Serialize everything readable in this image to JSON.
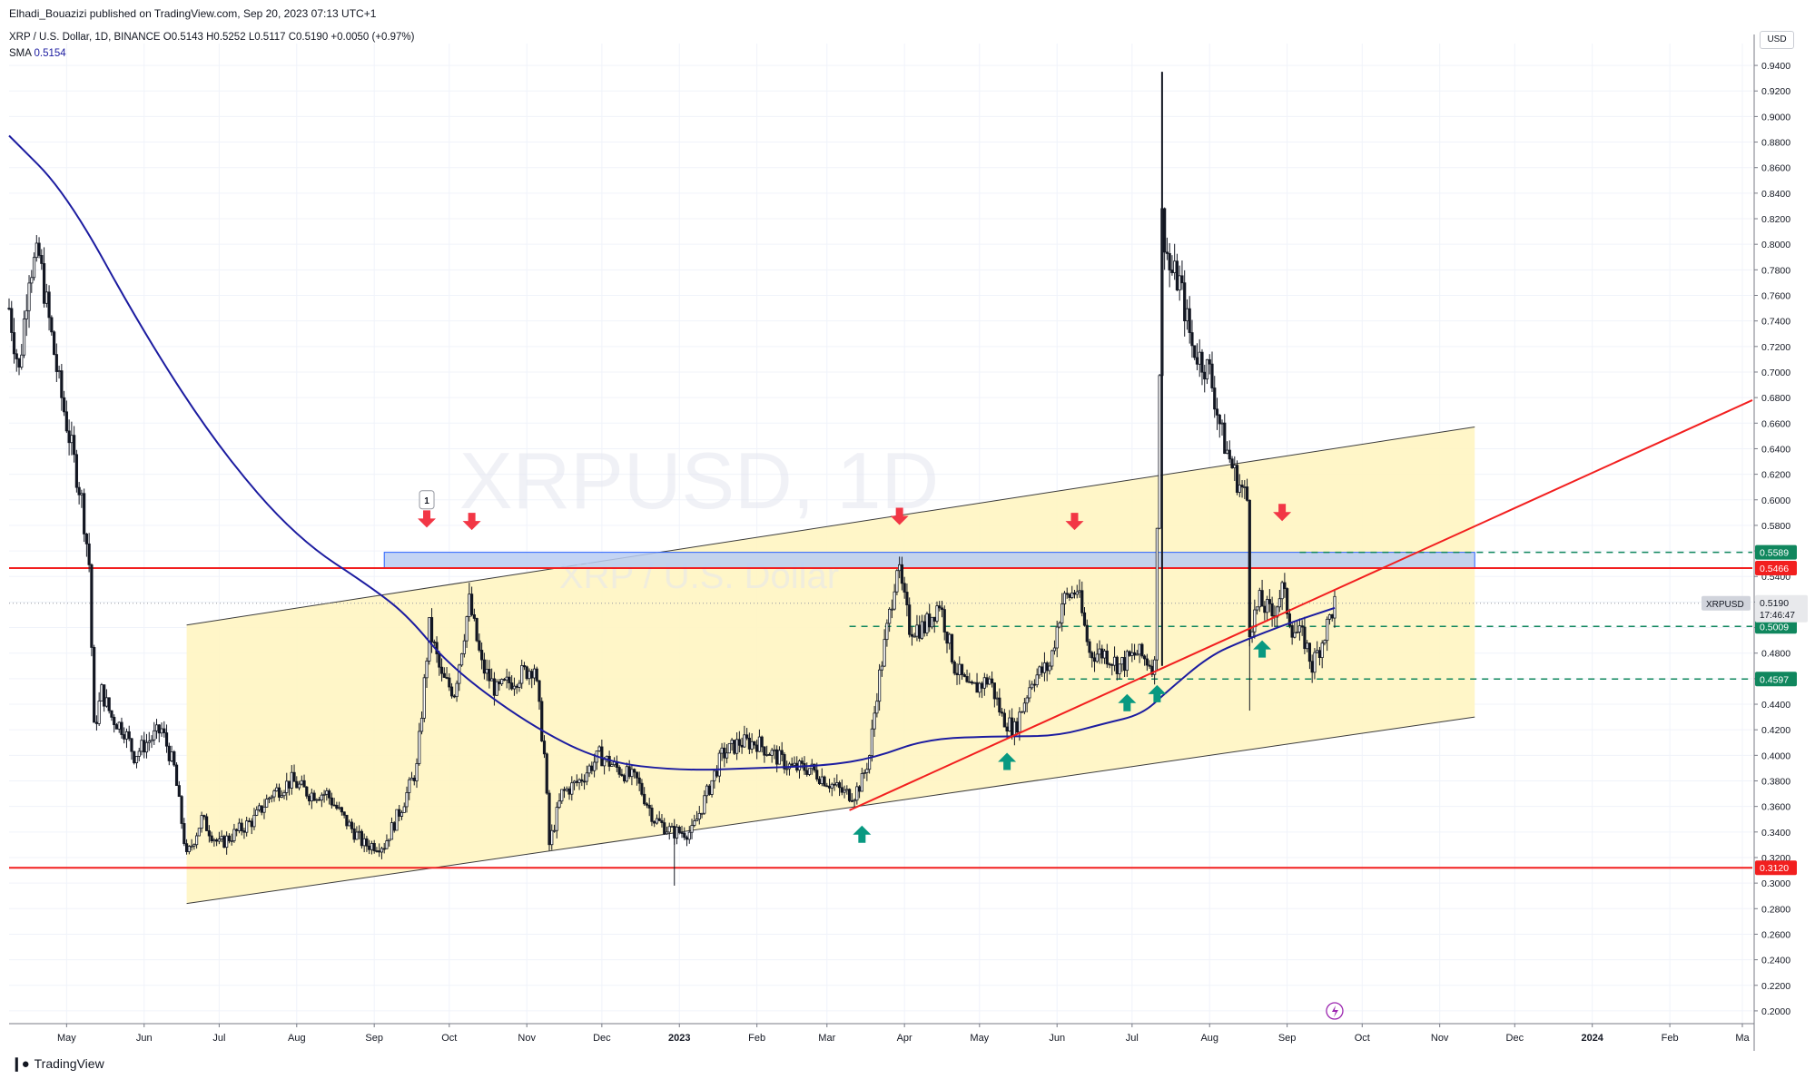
{
  "header": {
    "publisher_text": "Elhadi_Bouazizi published on TradingView.com, Sep 20, 2023 07:13 UTC+1",
    "symbol_title": "XRP / U.S. Dollar, 1D, BINANCE",
    "ohlc": {
      "o": "O0.5143",
      "h": "H0.5252",
      "l": "L0.5117",
      "c": "C0.5190",
      "chg": "+0.0050 (+0.97%)"
    },
    "sma_label": "SMA",
    "sma_value": "0.5154"
  },
  "currency_label": "USD",
  "watermark": {
    "symbol": "XRPUSD, 1D",
    "name": "XRP / U.S. Dollar"
  },
  "footer": {
    "brand": "TradingView"
  },
  "colors": {
    "bull": "#089981",
    "bear": "#f23645",
    "candle": "#131722",
    "sma": "#1c1ca0",
    "channel_fill": "#fff5c2",
    "support_line": "#f21f1f",
    "zone_fill": "#b8ccf2",
    "zone_border": "#2962ff",
    "level_dash": "#10875e"
  },
  "chart_data": {
    "type": "candlestick",
    "symbol": "XRPUSD",
    "timeframe": "1D",
    "y_axis": {
      "range": [
        0.19,
        0.95
      ],
      "ticks": [
        "0.2000",
        "0.2200",
        "0.2400",
        "0.2600",
        "0.2800",
        "0.3000",
        "0.3200",
        "0.3400",
        "0.3600",
        "0.3800",
        "0.4000",
        "0.4200",
        "0.4400",
        "0.4600",
        "0.4800",
        "0.5000",
        "0.5200",
        "0.5400",
        "0.5600",
        "0.5800",
        "0.6000",
        "0.6200",
        "0.6400",
        "0.6600",
        "0.6800",
        "0.7000",
        "0.7200",
        "0.7400",
        "0.7600",
        "0.7800",
        "0.8000",
        "0.8200",
        "0.8400",
        "0.8600",
        "0.8800",
        "0.9000",
        "0.9200",
        "0.9400"
      ]
    },
    "x_axis": {
      "start": "2022-04-08",
      "end": "2024-03-05",
      "ticks": [
        {
          "label": "May",
          "date": "2022-05-01"
        },
        {
          "label": "Jun",
          "date": "2022-06-01"
        },
        {
          "label": "Jul",
          "date": "2022-07-01"
        },
        {
          "label": "Aug",
          "date": "2022-08-01"
        },
        {
          "label": "Sep",
          "date": "2022-09-01"
        },
        {
          "label": "Oct",
          "date": "2022-10-01"
        },
        {
          "label": "Nov",
          "date": "2022-11-01"
        },
        {
          "label": "Dec",
          "date": "2022-12-01"
        },
        {
          "label": "2023",
          "date": "2023-01-01",
          "bold": true
        },
        {
          "label": "Feb",
          "date": "2023-02-01"
        },
        {
          "label": "Mar",
          "date": "2023-03-01"
        },
        {
          "label": "Apr",
          "date": "2023-04-01"
        },
        {
          "label": "May",
          "date": "2023-05-01"
        },
        {
          "label": "Jun",
          "date": "2023-06-01"
        },
        {
          "label": "Jul",
          "date": "2023-07-01"
        },
        {
          "label": "Aug",
          "date": "2023-08-01"
        },
        {
          "label": "Sep",
          "date": "2023-09-01"
        },
        {
          "label": "Oct",
          "date": "2023-10-01"
        },
        {
          "label": "Nov",
          "date": "2023-11-01"
        },
        {
          "label": "Dec",
          "date": "2023-12-01"
        },
        {
          "label": "2024",
          "date": "2024-01-01",
          "bold": true
        },
        {
          "label": "Feb",
          "date": "2024-02-01"
        },
        {
          "label": "Ma",
          "date": "2024-03-01"
        }
      ]
    },
    "price_series": [
      {
        "d": "2022-04-08",
        "p": 0.75
      },
      {
        "d": "2022-04-12",
        "p": 0.7
      },
      {
        "d": "2022-04-16",
        "p": 0.78
      },
      {
        "d": "2022-04-20",
        "p": 0.79
      },
      {
        "d": "2022-04-24",
        "p": 0.74
      },
      {
        "d": "2022-04-28",
        "p": 0.69
      },
      {
        "d": "2022-05-03",
        "p": 0.64
      },
      {
        "d": "2022-05-07",
        "p": 0.6
      },
      {
        "d": "2022-05-10",
        "p": 0.55
      },
      {
        "d": "2022-05-12",
        "p": 0.42
      },
      {
        "d": "2022-05-15",
        "p": 0.45
      },
      {
        "d": "2022-05-19",
        "p": 0.43
      },
      {
        "d": "2022-05-24",
        "p": 0.42
      },
      {
        "d": "2022-05-28",
        "p": 0.4
      },
      {
        "d": "2022-06-02",
        "p": 0.41
      },
      {
        "d": "2022-06-08",
        "p": 0.42
      },
      {
        "d": "2022-06-13",
        "p": 0.39
      },
      {
        "d": "2022-06-18",
        "p": 0.32
      },
      {
        "d": "2022-06-24",
        "p": 0.35
      },
      {
        "d": "2022-07-01",
        "p": 0.33
      },
      {
        "d": "2022-07-08",
        "p": 0.34
      },
      {
        "d": "2022-07-15",
        "p": 0.35
      },
      {
        "d": "2022-07-22",
        "p": 0.37
      },
      {
        "d": "2022-07-30",
        "p": 0.38
      },
      {
        "d": "2022-08-06",
        "p": 0.37
      },
      {
        "d": "2022-08-13",
        "p": 0.37
      },
      {
        "d": "2022-08-20",
        "p": 0.35
      },
      {
        "d": "2022-08-28",
        "p": 0.33
      },
      {
        "d": "2022-09-05",
        "p": 0.33
      },
      {
        "d": "2022-09-12",
        "p": 0.36
      },
      {
        "d": "2022-09-18",
        "p": 0.39
      },
      {
        "d": "2022-09-23",
        "p": 0.5
      },
      {
        "d": "2022-09-28",
        "p": 0.46
      },
      {
        "d": "2022-10-03",
        "p": 0.45
      },
      {
        "d": "2022-10-09",
        "p": 0.52
      },
      {
        "d": "2022-10-14",
        "p": 0.47
      },
      {
        "d": "2022-10-20",
        "p": 0.45
      },
      {
        "d": "2022-10-27",
        "p": 0.46
      },
      {
        "d": "2022-11-04",
        "p": 0.47
      },
      {
        "d": "2022-11-08",
        "p": 0.4
      },
      {
        "d": "2022-11-10",
        "p": 0.33
      },
      {
        "d": "2022-11-15",
        "p": 0.37
      },
      {
        "d": "2022-11-22",
        "p": 0.38
      },
      {
        "d": "2022-11-30",
        "p": 0.4
      },
      {
        "d": "2022-12-07",
        "p": 0.39
      },
      {
        "d": "2022-12-15",
        "p": 0.38
      },
      {
        "d": "2022-12-22",
        "p": 0.35
      },
      {
        "d": "2022-12-29",
        "p": 0.34
      },
      {
        "d": "2023-01-06",
        "p": 0.34
      },
      {
        "d": "2023-01-12",
        "p": 0.37
      },
      {
        "d": "2023-01-18",
        "p": 0.4
      },
      {
        "d": "2023-01-25",
        "p": 0.41
      },
      {
        "d": "2023-02-01",
        "p": 0.41
      },
      {
        "d": "2023-02-08",
        "p": 0.4
      },
      {
        "d": "2023-02-15",
        "p": 0.39
      },
      {
        "d": "2023-02-22",
        "p": 0.39
      },
      {
        "d": "2023-03-01",
        "p": 0.38
      },
      {
        "d": "2023-03-08",
        "p": 0.37
      },
      {
        "d": "2023-03-12",
        "p": 0.37
      },
      {
        "d": "2023-03-15",
        "p": 0.38
      },
      {
        "d": "2023-03-18",
        "p": 0.4
      },
      {
        "d": "2023-03-21",
        "p": 0.45
      },
      {
        "d": "2023-03-26",
        "p": 0.51
      },
      {
        "d": "2023-03-29",
        "p": 0.55
      },
      {
        "d": "2023-04-03",
        "p": 0.5
      },
      {
        "d": "2023-04-09",
        "p": 0.5
      },
      {
        "d": "2023-04-15",
        "p": 0.52
      },
      {
        "d": "2023-04-21",
        "p": 0.47
      },
      {
        "d": "2023-04-27",
        "p": 0.45
      },
      {
        "d": "2023-05-05",
        "p": 0.46
      },
      {
        "d": "2023-05-10",
        "p": 0.43
      },
      {
        "d": "2023-05-15",
        "p": 0.42
      },
      {
        "d": "2023-05-22",
        "p": 0.46
      },
      {
        "d": "2023-05-29",
        "p": 0.47
      },
      {
        "d": "2023-06-03",
        "p": 0.52
      },
      {
        "d": "2023-06-09",
        "p": 0.53
      },
      {
        "d": "2023-06-14",
        "p": 0.48
      },
      {
        "d": "2023-06-20",
        "p": 0.48
      },
      {
        "d": "2023-06-26",
        "p": 0.47
      },
      {
        "d": "2023-07-03",
        "p": 0.48
      },
      {
        "d": "2023-07-10",
        "p": 0.47
      },
      {
        "d": "2023-07-13",
        "p": 0.82
      },
      {
        "d": "2023-07-16",
        "p": 0.78
      },
      {
        "d": "2023-07-20",
        "p": 0.77
      },
      {
        "d": "2023-07-25",
        "p": 0.72
      },
      {
        "d": "2023-08-01",
        "p": 0.7
      },
      {
        "d": "2023-08-06",
        "p": 0.65
      },
      {
        "d": "2023-08-11",
        "p": 0.62
      },
      {
        "d": "2023-08-16",
        "p": 0.6
      },
      {
        "d": "2023-08-17",
        "p": 0.5
      },
      {
        "d": "2023-08-21",
        "p": 0.52
      },
      {
        "d": "2023-08-26",
        "p": 0.51
      },
      {
        "d": "2023-08-30",
        "p": 0.53
      },
      {
        "d": "2023-09-03",
        "p": 0.5
      },
      {
        "d": "2023-09-08",
        "p": 0.49
      },
      {
        "d": "2023-09-11",
        "p": 0.47
      },
      {
        "d": "2023-09-15",
        "p": 0.49
      },
      {
        "d": "2023-09-20",
        "p": 0.519
      }
    ],
    "sma_series": [
      {
        "d": "2022-04-08",
        "p": 0.885
      },
      {
        "d": "2022-05-01",
        "p": 0.84
      },
      {
        "d": "2022-06-01",
        "p": 0.73
      },
      {
        "d": "2022-07-01",
        "p": 0.64
      },
      {
        "d": "2022-08-01",
        "p": 0.57
      },
      {
        "d": "2022-09-01",
        "p": 0.53
      },
      {
        "d": "2022-09-15",
        "p": 0.508
      },
      {
        "d": "2022-10-01",
        "p": 0.47
      },
      {
        "d": "2022-11-01",
        "p": 0.425
      },
      {
        "d": "2022-12-01",
        "p": 0.395
      },
      {
        "d": "2023-01-01",
        "p": 0.388
      },
      {
        "d": "2023-02-01",
        "p": 0.39
      },
      {
        "d": "2023-03-01",
        "p": 0.392
      },
      {
        "d": "2023-03-20",
        "p": 0.398
      },
      {
        "d": "2023-04-10",
        "p": 0.413
      },
      {
        "d": "2023-05-10",
        "p": 0.415
      },
      {
        "d": "2023-06-01",
        "p": 0.415
      },
      {
        "d": "2023-06-20",
        "p": 0.425
      },
      {
        "d": "2023-07-05",
        "p": 0.432
      },
      {
        "d": "2023-07-15",
        "p": 0.45
      },
      {
        "d": "2023-08-01",
        "p": 0.478
      },
      {
        "d": "2023-08-15",
        "p": 0.49
      },
      {
        "d": "2023-09-01",
        "p": 0.503
      },
      {
        "d": "2023-09-20",
        "p": 0.5154
      }
    ],
    "channel": {
      "upper": [
        {
          "d": "2022-06-18",
          "p": 0.502
        },
        {
          "d": "2023-11-15",
          "p": 0.657
        }
      ],
      "lower": [
        {
          "d": "2022-06-18",
          "p": 0.284
        },
        {
          "d": "2023-11-15",
          "p": 0.43
        }
      ]
    },
    "trendline": [
      {
        "d": "2023-03-10",
        "p": 0.357
      },
      {
        "d": "2024-03-05",
        "p": 0.678
      }
    ],
    "resistance_zone": {
      "from": "2022-09-05",
      "to": "2023-11-15",
      "top": 0.5589,
      "bottom": 0.5466
    },
    "horizontal_lines": [
      {
        "price": 0.5466,
        "style": "solid",
        "color": "#f21f1f",
        "label": "0.5466"
      },
      {
        "price": 0.312,
        "style": "solid",
        "color": "#f21f1f",
        "label": "0.3120"
      },
      {
        "price": 0.5589,
        "style": "dashed",
        "color": "#10875e",
        "label": "0.5589",
        "from": "2023-09-06"
      },
      {
        "price": 0.5009,
        "style": "dashed",
        "color": "#10875e",
        "label": "0.5009",
        "from": "2023-03-10"
      },
      {
        "price": 0.4597,
        "style": "dashed",
        "color": "#10875e",
        "label": "0.4597",
        "from": "2023-06-01"
      }
    ],
    "last_price": {
      "symbol": "XRPUSD",
      "value": "0.5190",
      "countdown": "17:46:47"
    },
    "sma_label_value": "0.5154",
    "arrows_down": [
      "2022-09-22",
      "2022-10-10",
      "2023-03-30",
      "2023-06-08",
      "2023-08-30"
    ],
    "arrows_up": [
      "2023-03-15",
      "2023-05-12",
      "2023-06-29",
      "2023-07-11",
      "2023-08-22"
    ],
    "annotation_marker": {
      "text": "1",
      "date": "2022-09-22"
    }
  }
}
